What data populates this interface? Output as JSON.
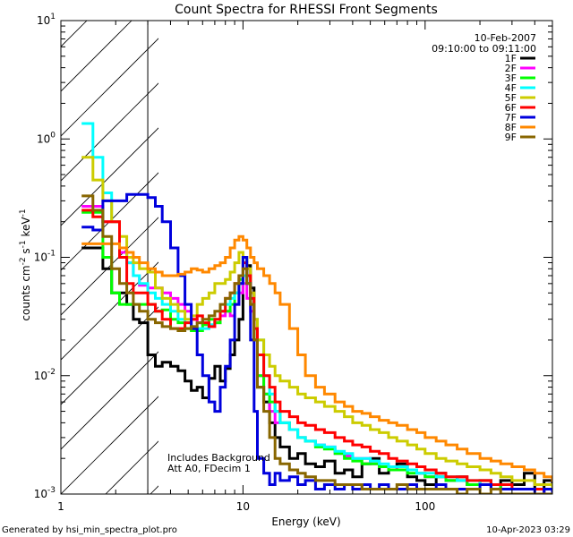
{
  "chart_data": {
    "type": "line",
    "title": "Count Spectra for RHESSI Front Segments",
    "xlabel": "Energy (keV)",
    "ylabel_parts": {
      "pre": "counts cm",
      "exp1": "-2",
      "mid1": " s",
      "exp2": "-1",
      "mid2": " keV",
      "exp3": "-1"
    },
    "x_scale": "log",
    "y_scale": "log",
    "xlim": [
      1,
      500
    ],
    "ylim": [
      0.001,
      10
    ],
    "x_ticks": [
      {
        "v": 1,
        "label": "1"
      },
      {
        "v": 10,
        "label": "10"
      },
      {
        "v": 100,
        "label": "100"
      }
    ],
    "y_ticks": [
      {
        "v": 0.001,
        "base": "10",
        "exp": "-3"
      },
      {
        "v": 0.01,
        "base": "10",
        "exp": "-2"
      },
      {
        "v": 0.1,
        "base": "10",
        "exp": "-1"
      },
      {
        "v": 1,
        "base": "10",
        "exp": "0"
      },
      {
        "v": 10,
        "base": "10",
        "exp": "1"
      }
    ],
    "date": "10-Feb-2007",
    "time_range": "09:10:00 to 09:11:00",
    "attenuator_line": 3.0,
    "annotations": [
      "Includes Background",
      "Att A0, FDecim 1"
    ],
    "footer_left": "Generated by hsi_min_spectra_plot.pro",
    "footer_right": "10-Apr-2023 03:29",
    "legend_position": "top-right",
    "series": [
      {
        "name": "1F",
        "color": "#000000",
        "x": [
          1.3,
          1.5,
          1.7,
          1.9,
          2.1,
          2.3,
          2.5,
          2.7,
          3.0,
          3.3,
          3.6,
          4.0,
          4.4,
          4.8,
          5.2,
          5.6,
          6.0,
          6.5,
          7.0,
          7.5,
          8.0,
          8.5,
          9.0,
          9.5,
          10.0,
          10.5,
          11.0,
          11.5,
          12,
          13,
          14,
          15,
          16,
          18,
          20,
          22,
          25,
          28,
          32,
          36,
          40,
          45,
          50,
          56,
          63,
          70,
          80,
          90,
          100,
          115,
          130,
          150,
          170,
          200,
          230,
          260,
          300,
          350,
          400,
          450,
          500
        ],
        "y": [
          0.12,
          0.12,
          0.08,
          0.05,
          0.05,
          0.04,
          0.03,
          0.028,
          0.015,
          0.012,
          0.013,
          0.012,
          0.011,
          0.009,
          0.0075,
          0.008,
          0.0065,
          0.0095,
          0.012,
          0.009,
          0.0115,
          0.015,
          0.02,
          0.03,
          0.07,
          0.085,
          0.055,
          0.02,
          0.008,
          0.006,
          0.004,
          0.003,
          0.0025,
          0.002,
          0.0022,
          0.0018,
          0.0017,
          0.0019,
          0.0015,
          0.0016,
          0.0014,
          0.0018,
          0.002,
          0.0015,
          0.0017,
          0.0018,
          0.0014,
          0.0013,
          0.0012,
          0.0015,
          0.0013,
          0.0014,
          0.0012,
          0.0013,
          0.0011,
          0.0013,
          0.0012,
          0.0015,
          0.0011,
          0.0013,
          0.0012
        ]
      },
      {
        "name": "2F",
        "color": "#ff00ff",
        "x": [
          1.3,
          1.5,
          1.7,
          1.9,
          2.1,
          2.3,
          2.5,
          2.7,
          3.0,
          3.3,
          3.6,
          4.0,
          4.4,
          4.8,
          5.2,
          5.6,
          6.0,
          6.5,
          7.0,
          7.5,
          8.0,
          8.5,
          9.0,
          9.5,
          10.0,
          10.5,
          11.0,
          11.5,
          12,
          13,
          14,
          15,
          16,
          18,
          20,
          22,
          25,
          28,
          32,
          36,
          40,
          45,
          50,
          56,
          63,
          70,
          80,
          90,
          100,
          115,
          130,
          150,
          170,
          200,
          230,
          260,
          300,
          350,
          400,
          450,
          500
        ],
        "y": [
          0.27,
          0.27,
          0.2,
          0.2,
          0.11,
          0.09,
          0.07,
          0.058,
          0.055,
          0.055,
          0.05,
          0.045,
          0.04,
          0.035,
          0.03,
          0.028,
          0.027,
          0.026,
          0.028,
          0.032,
          0.035,
          0.032,
          0.04,
          0.05,
          0.06,
          0.045,
          0.035,
          0.02,
          0.01,
          0.007,
          0.005,
          0.004,
          0.004,
          0.0035,
          0.003,
          0.0028,
          0.0026,
          0.0025,
          0.0022,
          0.0021,
          0.002,
          0.002,
          0.0018,
          0.0017,
          0.0017,
          0.0016,
          0.0016,
          0.0015,
          0.0014,
          0.0014,
          0.0013,
          0.0013,
          0.0012,
          0.0012,
          0.0012,
          0.0011,
          0.0011,
          0.0011,
          0.0011,
          0.001,
          0.001
        ]
      },
      {
        "name": "3F",
        "color": "#00ff00",
        "x": [
          1.3,
          1.5,
          1.7,
          1.9,
          2.1,
          2.3,
          2.5,
          2.7,
          3.0,
          3.3,
          3.6,
          4.0,
          4.4,
          4.8,
          5.2,
          5.6,
          6.0,
          6.5,
          7.0,
          7.5,
          8.0,
          8.5,
          9.0,
          9.5,
          10.0,
          10.5,
          11.0,
          11.5,
          12,
          13,
          14,
          15,
          16,
          18,
          20,
          22,
          25,
          28,
          32,
          36,
          40,
          45,
          50,
          56,
          63,
          70,
          80,
          90,
          100,
          115,
          130,
          150,
          170,
          200,
          230,
          260,
          300,
          350,
          400,
          450,
          500
        ],
        "y": [
          0.24,
          0.24,
          0.1,
          0.05,
          0.04,
          0.04,
          0.04,
          0.04,
          0.04,
          0.035,
          0.036,
          0.03,
          0.028,
          0.025,
          0.024,
          0.024,
          0.027,
          0.03,
          0.028,
          0.035,
          0.035,
          0.04,
          0.05,
          0.065,
          0.1,
          0.07,
          0.04,
          0.02,
          0.01,
          0.007,
          0.006,
          0.005,
          0.004,
          0.0035,
          0.003,
          0.0028,
          0.0025,
          0.0024,
          0.0022,
          0.002,
          0.0019,
          0.0018,
          0.0018,
          0.0017,
          0.0016,
          0.0016,
          0.0015,
          0.0015,
          0.0014,
          0.0014,
          0.0013,
          0.0013,
          0.0012,
          0.0012,
          0.0012,
          0.0011,
          0.0011,
          0.0011,
          0.0011,
          0.001,
          0.001
        ]
      },
      {
        "name": "4F",
        "color": "#00ffff",
        "x": [
          1.3,
          1.5,
          1.7,
          1.9,
          2.1,
          2.3,
          2.5,
          2.7,
          3.0,
          3.3,
          3.6,
          4.0,
          4.4,
          4.8,
          5.2,
          5.6,
          6.0,
          6.5,
          7.0,
          7.5,
          8.0,
          8.5,
          9.0,
          9.5,
          10.0,
          10.5,
          11.0,
          11.5,
          12,
          13,
          14,
          15,
          16,
          18,
          20,
          22,
          25,
          28,
          32,
          36,
          40,
          45,
          50,
          56,
          63,
          70,
          80,
          90,
          100,
          115,
          130,
          150,
          170,
          200,
          230,
          260,
          300,
          350,
          400,
          450,
          500
        ],
        "y": [
          1.35,
          0.7,
          0.35,
          0.2,
          0.12,
          0.09,
          0.07,
          0.06,
          0.05,
          0.045,
          0.04,
          0.035,
          0.03,
          0.028,
          0.026,
          0.025,
          0.025,
          0.027,
          0.03,
          0.035,
          0.04,
          0.045,
          0.05,
          0.06,
          0.07,
          0.06,
          0.045,
          0.03,
          0.02,
          0.01,
          0.007,
          0.005,
          0.004,
          0.0035,
          0.003,
          0.0028,
          0.0026,
          0.0025,
          0.0023,
          0.0022,
          0.002,
          0.002,
          0.0019,
          0.0018,
          0.0017,
          0.0017,
          0.0016,
          0.0015,
          0.0015,
          0.0014,
          0.0014,
          0.0013,
          0.0013,
          0.0012,
          0.0012,
          0.0012,
          0.0011,
          0.0011,
          0.0011,
          0.001,
          0.001
        ]
      },
      {
        "name": "5F",
        "color": "#cccc00",
        "x": [
          1.3,
          1.5,
          1.7,
          1.9,
          2.1,
          2.3,
          2.5,
          2.7,
          3.0,
          3.3,
          3.6,
          4.0,
          4.4,
          4.8,
          5.2,
          5.6,
          6.0,
          6.5,
          7.0,
          7.5,
          8.0,
          8.5,
          9.0,
          9.5,
          10.0,
          10.5,
          11.0,
          11.5,
          12,
          13,
          14,
          15,
          16,
          18,
          20,
          22,
          25,
          28,
          32,
          36,
          40,
          45,
          50,
          56,
          63,
          70,
          80,
          90,
          100,
          115,
          130,
          150,
          170,
          200,
          230,
          260,
          300,
          350,
          400,
          450,
          500
        ],
        "y": [
          0.7,
          0.45,
          0.3,
          0.2,
          0.15,
          0.1,
          0.09,
          0.08,
          0.075,
          0.055,
          0.045,
          0.04,
          0.035,
          0.03,
          0.032,
          0.04,
          0.045,
          0.05,
          0.06,
          0.06,
          0.065,
          0.075,
          0.09,
          0.11,
          0.1,
          0.08,
          0.05,
          0.03,
          0.02,
          0.015,
          0.012,
          0.01,
          0.009,
          0.008,
          0.007,
          0.0065,
          0.006,
          0.0055,
          0.005,
          0.0045,
          0.004,
          0.0038,
          0.0035,
          0.0033,
          0.003,
          0.0028,
          0.0026,
          0.0024,
          0.0022,
          0.002,
          0.0019,
          0.0018,
          0.0017,
          0.0016,
          0.0015,
          0.0014,
          0.0013,
          0.0013,
          0.0012,
          0.0012,
          0.0011
        ]
      },
      {
        "name": "6F",
        "color": "#ff0000",
        "x": [
          1.3,
          1.5,
          1.7,
          1.9,
          2.1,
          2.3,
          2.5,
          2.7,
          3.0,
          3.3,
          3.6,
          4.0,
          4.4,
          4.8,
          5.2,
          5.6,
          6.0,
          6.5,
          7.0,
          7.5,
          8.0,
          8.5,
          9.0,
          9.5,
          10.0,
          10.5,
          11.0,
          11.5,
          12,
          13,
          14,
          15,
          16,
          18,
          20,
          22,
          25,
          28,
          32,
          36,
          40,
          45,
          50,
          56,
          63,
          70,
          80,
          90,
          100,
          115,
          130,
          150,
          170,
          200,
          230,
          260,
          300,
          350,
          400,
          450,
          500
        ],
        "y": [
          0.25,
          0.22,
          0.2,
          0.2,
          0.1,
          0.06,
          0.05,
          0.05,
          0.04,
          0.035,
          0.03,
          0.025,
          0.025,
          0.028,
          0.03,
          0.032,
          0.028,
          0.026,
          0.03,
          0.035,
          0.045,
          0.05,
          0.06,
          0.07,
          0.09,
          0.07,
          0.045,
          0.025,
          0.015,
          0.01,
          0.008,
          0.006,
          0.005,
          0.0045,
          0.004,
          0.0038,
          0.0035,
          0.0033,
          0.003,
          0.0028,
          0.0026,
          0.0025,
          0.0023,
          0.0022,
          0.002,
          0.0019,
          0.0018,
          0.0017,
          0.0016,
          0.0015,
          0.0014,
          0.0014,
          0.0013,
          0.0013,
          0.0012,
          0.0012,
          0.0011,
          0.0011,
          0.0011,
          0.001,
          0.001
        ]
      },
      {
        "name": "7F",
        "color": "#0000dd",
        "x": [
          1.3,
          1.5,
          1.7,
          1.9,
          2.1,
          2.3,
          2.5,
          2.7,
          3.0,
          3.3,
          3.6,
          4.0,
          4.4,
          4.8,
          5.2,
          5.6,
          6.0,
          6.5,
          7.0,
          7.5,
          8.0,
          8.5,
          9.0,
          9.5,
          10.0,
          10.5,
          11.0,
          11.5,
          12,
          13,
          14,
          15,
          16,
          18,
          20,
          22,
          25,
          28,
          32,
          36,
          40,
          45,
          50,
          56,
          63,
          70,
          80,
          90,
          100,
          115,
          130,
          150,
          170,
          200,
          230,
          260,
          300,
          350,
          400,
          450,
          500
        ],
        "y": [
          0.18,
          0.17,
          0.3,
          0.3,
          0.3,
          0.34,
          0.34,
          0.34,
          0.32,
          0.27,
          0.2,
          0.12,
          0.07,
          0.04,
          0.025,
          0.015,
          0.01,
          0.006,
          0.005,
          0.008,
          0.012,
          0.02,
          0.04,
          0.06,
          0.1,
          0.06,
          0.02,
          0.005,
          0.002,
          0.0015,
          0.0012,
          0.0015,
          0.0013,
          0.0014,
          0.0012,
          0.0013,
          0.0011,
          0.0012,
          0.0011,
          0.0012,
          0.0011,
          0.0012,
          0.0011,
          0.0012,
          0.0011,
          0.0011,
          0.0012,
          0.0011,
          0.0011,
          0.0012,
          0.0011,
          0.0011,
          0.0011,
          0.0012,
          0.0011,
          0.0011,
          0.0011,
          0.0011,
          0.001,
          0.0011,
          0.001
        ]
      },
      {
        "name": "8F",
        "color": "#ff8800",
        "x": [
          1.3,
          1.5,
          1.7,
          1.9,
          2.1,
          2.3,
          2.5,
          2.7,
          3.0,
          3.3,
          3.6,
          4.0,
          4.4,
          4.8,
          5.2,
          5.6,
          6.0,
          6.5,
          7.0,
          7.5,
          8.0,
          8.5,
          9.0,
          9.5,
          10.0,
          10.5,
          11.0,
          11.5,
          12,
          13,
          14,
          15,
          16,
          18,
          20,
          22,
          25,
          28,
          32,
          36,
          40,
          45,
          50,
          56,
          63,
          70,
          80,
          90,
          100,
          115,
          130,
          150,
          170,
          200,
          230,
          260,
          300,
          350,
          400,
          450,
          500
        ],
        "y": [
          0.13,
          0.13,
          0.13,
          0.13,
          0.12,
          0.11,
          0.1,
          0.09,
          0.08,
          0.075,
          0.07,
          0.07,
          0.072,
          0.075,
          0.08,
          0.078,
          0.075,
          0.08,
          0.085,
          0.09,
          0.1,
          0.12,
          0.14,
          0.15,
          0.14,
          0.12,
          0.1,
          0.09,
          0.08,
          0.07,
          0.06,
          0.05,
          0.04,
          0.025,
          0.015,
          0.01,
          0.008,
          0.007,
          0.006,
          0.0055,
          0.005,
          0.0048,
          0.0045,
          0.0042,
          0.004,
          0.0038,
          0.0035,
          0.0033,
          0.003,
          0.0028,
          0.0026,
          0.0024,
          0.0022,
          0.002,
          0.0019,
          0.0018,
          0.0017,
          0.0016,
          0.0015,
          0.0014,
          0.0013
        ]
      },
      {
        "name": "9F",
        "color": "#886600",
        "x": [
          1.3,
          1.5,
          1.7,
          1.9,
          2.1,
          2.3,
          2.5,
          2.7,
          3.0,
          3.3,
          3.6,
          4.0,
          4.4,
          4.8,
          5.2,
          5.6,
          6.0,
          6.5,
          7.0,
          7.5,
          8.0,
          8.5,
          9.0,
          9.5,
          10.0,
          10.5,
          11.0,
          11.5,
          12,
          13,
          14,
          15,
          16,
          18,
          20,
          22,
          25,
          28,
          32,
          36,
          40,
          45,
          50,
          56,
          63,
          70,
          80,
          90,
          100,
          115,
          130,
          150,
          170,
          200,
          230,
          260,
          300,
          350,
          400,
          450,
          500
        ],
        "y": [
          0.33,
          0.25,
          0.15,
          0.08,
          0.06,
          0.05,
          0.04,
          0.035,
          0.03,
          0.028,
          0.026,
          0.025,
          0.024,
          0.025,
          0.026,
          0.028,
          0.03,
          0.032,
          0.035,
          0.04,
          0.045,
          0.05,
          0.06,
          0.07,
          0.08,
          0.06,
          0.04,
          0.02,
          0.008,
          0.005,
          0.003,
          0.002,
          0.0018,
          0.0016,
          0.0015,
          0.0014,
          0.0013,
          0.0013,
          0.0012,
          0.0012,
          0.0012,
          0.0011,
          0.0011,
          0.0011,
          0.0011,
          0.0012,
          0.0011,
          0.0011,
          0.0011,
          0.0011,
          0.0011,
          0.001,
          0.0011,
          0.001,
          0.0011,
          0.001,
          0.001,
          0.001,
          0.001,
          0.001,
          0.001
        ]
      }
    ]
  }
}
